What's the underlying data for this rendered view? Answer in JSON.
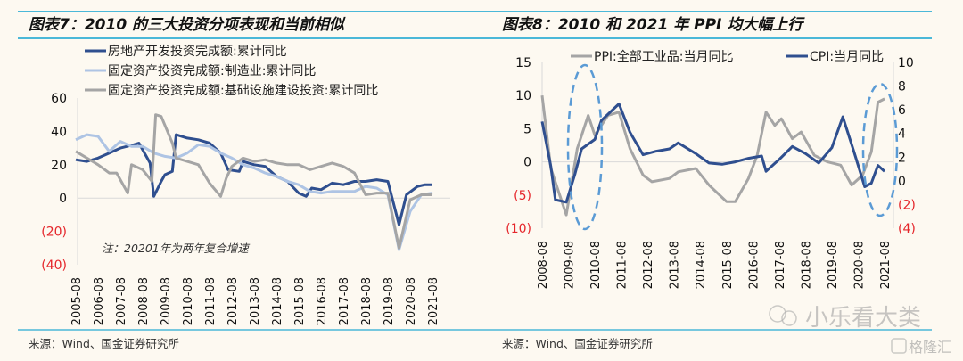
{
  "left_title": "图表7：2010 的三大投资分项表现和当前相似",
  "right_title": "图表8：2010 和 2021 年 PPI 均大幅上行",
  "left_source": "来源：Wind、国金证券研究所",
  "right_source": "来源：Wind、国金证券研究所",
  "watermark": "小乐看大类",
  "watermark_logo": "格隆汇",
  "colors": {
    "dark_blue": "#2f4f8f",
    "light_blue": "#aec4e4",
    "grey": "#a5a5a5",
    "negative_label": "#e5262b",
    "rule": "#4bb8d8",
    "dashed_ellipse": "#5b9bd5"
  },
  "chart_data": [
    {
      "type": "line",
      "title": "图表7：2010 的三大投资分项表现和当前相似",
      "annotation": "注：20201年为两年复合增速",
      "ylim": [
        -40,
        60
      ],
      "yticks": [
        60,
        40,
        20,
        0,
        -20,
        -40
      ],
      "ytick_labels": [
        "60",
        "40",
        "20",
        "0",
        "(20)",
        "(40)"
      ],
      "xticks": [
        "2005-08",
        "2006-08",
        "2007-08",
        "2008-08",
        "2009-08",
        "2010-08",
        "2011-08",
        "2012-08",
        "2013-08",
        "2014-08",
        "2015-08",
        "2016-08",
        "2017-08",
        "2018-08",
        "2019-08",
        "2020-08",
        "2021-08"
      ],
      "xlim": [
        "2005-08",
        "2021-08"
      ],
      "legend": "top",
      "series": [
        {
          "name": "房地产开发投资完成额:累计同比",
          "color": "#2f4f8f",
          "x": [
            "2005-08",
            "2006-02",
            "2006-08",
            "2007-02",
            "2007-08",
            "2008-03",
            "2008-06",
            "2008-12",
            "2009-02",
            "2009-06",
            "2009-08",
            "2009-12",
            "2010-02",
            "2010-08",
            "2011-02",
            "2011-08",
            "2012-02",
            "2012-06",
            "2012-12",
            "2013-02",
            "2013-08",
            "2014-02",
            "2014-08",
            "2015-02",
            "2015-08",
            "2015-12",
            "2016-03",
            "2016-08",
            "2017-02",
            "2017-08",
            "2018-02",
            "2018-08",
            "2019-02",
            "2019-08",
            "2020-02",
            "2020-06",
            "2020-12",
            "2021-04",
            "2021-08"
          ],
          "y": [
            23,
            22,
            24,
            27,
            30,
            32,
            33,
            21,
            1,
            10,
            14,
            16,
            38,
            36,
            35,
            33,
            27,
            17,
            16,
            22,
            20,
            19,
            13,
            10,
            3,
            1,
            6,
            5,
            9,
            8,
            10,
            10,
            11,
            10,
            -16,
            2,
            7,
            8,
            8
          ]
        },
        {
          "name": "固定资产投资完成额:制造业:累计同比",
          "color": "#aec4e4",
          "x": [
            "2005-08",
            "2006-02",
            "2006-08",
            "2007-02",
            "2007-08",
            "2008-02",
            "2008-08",
            "2009-02",
            "2009-08",
            "2010-02",
            "2010-08",
            "2011-02",
            "2011-08",
            "2012-02",
            "2012-08",
            "2013-02",
            "2013-08",
            "2014-02",
            "2014-08",
            "2015-02",
            "2015-08",
            "2016-02",
            "2016-08",
            "2017-02",
            "2017-08",
            "2018-02",
            "2018-08",
            "2019-02",
            "2019-08",
            "2020-02",
            "2020-08",
            "2021-02",
            "2021-08"
          ],
          "y": [
            35,
            38,
            37,
            28,
            34,
            31,
            31,
            27,
            25,
            24,
            27,
            32,
            31,
            27,
            24,
            20,
            18,
            15,
            13,
            10,
            8,
            4,
            3,
            4,
            4,
            4,
            7,
            6,
            2,
            -31,
            -8,
            2,
            3
          ]
        },
        {
          "name": "固定资产投资完成额:基础设施建设投资:累计同比",
          "color": "#a5a5a5",
          "x": [
            "2005-08",
            "2006-02",
            "2006-08",
            "2007-02",
            "2007-06",
            "2007-12",
            "2008-02",
            "2008-08",
            "2009-01",
            "2009-03",
            "2009-06",
            "2009-12",
            "2010-02",
            "2010-08",
            "2011-02",
            "2011-08",
            "2012-02",
            "2012-05",
            "2012-08",
            "2013-02",
            "2013-08",
            "2014-02",
            "2014-08",
            "2015-02",
            "2015-08",
            "2016-02",
            "2016-08",
            "2017-02",
            "2017-08",
            "2018-02",
            "2018-08",
            "2019-02",
            "2019-08",
            "2020-02",
            "2020-08",
            "2021-02",
            "2021-08"
          ],
          "y": [
            28,
            24,
            20,
            15,
            15,
            3,
            20,
            17,
            10,
            50,
            49,
            33,
            24,
            22,
            20,
            9,
            1,
            12,
            19,
            24,
            22,
            23,
            21,
            20,
            20,
            17,
            19,
            21,
            19,
            15,
            2,
            3,
            3,
            -30,
            -1,
            2,
            2
          ]
        }
      ]
    },
    {
      "type": "line",
      "title": "图表8：2010 和 2021 年 PPI 均大幅上行",
      "ylim": [
        -10,
        15
      ],
      "yticks": [
        15,
        10,
        5,
        0,
        -5,
        -10
      ],
      "ytick_labels": [
        "15",
        "10",
        "5",
        "0",
        "(5)",
        "(10)"
      ],
      "y2lim": [
        -4,
        10
      ],
      "y2ticks": [
        10,
        8,
        6,
        4,
        2,
        0,
        -2,
        -4
      ],
      "y2tick_labels": [
        "10",
        "8",
        "6",
        "4",
        "2",
        "0",
        "(2)",
        "(4)"
      ],
      "xticks": [
        "2008-08",
        "2009-08",
        "2010-08",
        "2011-08",
        "2012-08",
        "2013-08",
        "2014-08",
        "2015-08",
        "2016-08",
        "2017-08",
        "2018-08",
        "2019-08",
        "2020-08",
        "2021-08"
      ],
      "xlim": [
        "2008-08",
        "2021-08"
      ],
      "legend": "top",
      "highlighted_periods": [
        "2009-2010",
        "2021"
      ],
      "series": [
        {
          "name": "PPI:全部工业品:当月同比",
          "color": "#a5a5a5",
          "axis": "left",
          "x": [
            "2008-08",
            "2008-12",
            "2009-07",
            "2009-12",
            "2010-05",
            "2010-08",
            "2011-02",
            "2011-07",
            "2011-12",
            "2012-06",
            "2012-10",
            "2013-06",
            "2013-10",
            "2014-06",
            "2014-12",
            "2015-08",
            "2015-12",
            "2016-06",
            "2016-10",
            "2017-02",
            "2017-06",
            "2017-09",
            "2018-02",
            "2018-06",
            "2018-12",
            "2019-06",
            "2019-12",
            "2020-05",
            "2020-10",
            "2021-02",
            "2021-05",
            "2021-08"
          ],
          "y": [
            10,
            -1,
            -8,
            2,
            7,
            4,
            7,
            7.5,
            2,
            -2,
            -3,
            -2.5,
            -1.5,
            -1,
            -3.5,
            -6,
            -6,
            -2.5,
            1,
            7.5,
            5.5,
            6.5,
            3.5,
            4.5,
            1,
            0,
            -0.5,
            -3.5,
            -2,
            1.5,
            9,
            9.5
          ]
        },
        {
          "name": "CPI:当月同比",
          "color": "#2f4f8f",
          "axis": "right",
          "x": [
            "2008-08",
            "2008-12",
            "2009-02",
            "2009-07",
            "2009-11",
            "2010-02",
            "2010-08",
            "2010-11",
            "2011-07",
            "2011-12",
            "2012-06",
            "2012-12",
            "2013-06",
            "2013-10",
            "2014-06",
            "2014-12",
            "2015-06",
            "2015-12",
            "2016-06",
            "2016-12",
            "2017-02",
            "2017-08",
            "2018-02",
            "2018-08",
            "2019-02",
            "2019-08",
            "2020-01",
            "2020-06",
            "2020-11",
            "2021-02",
            "2021-05",
            "2021-08"
          ],
          "y": [
            5,
            1.2,
            -1.6,
            -1.8,
            0.6,
            2.7,
            3.5,
            5.1,
            6.5,
            4.1,
            2.2,
            2.5,
            2.7,
            3.2,
            2.3,
            1.5,
            1.4,
            1.6,
            1.9,
            2.1,
            0.8,
            1.8,
            2.9,
            2.3,
            1.5,
            2.8,
            5.4,
            2.5,
            -0.5,
            -0.2,
            1.3,
            0.8
          ]
        }
      ]
    }
  ]
}
